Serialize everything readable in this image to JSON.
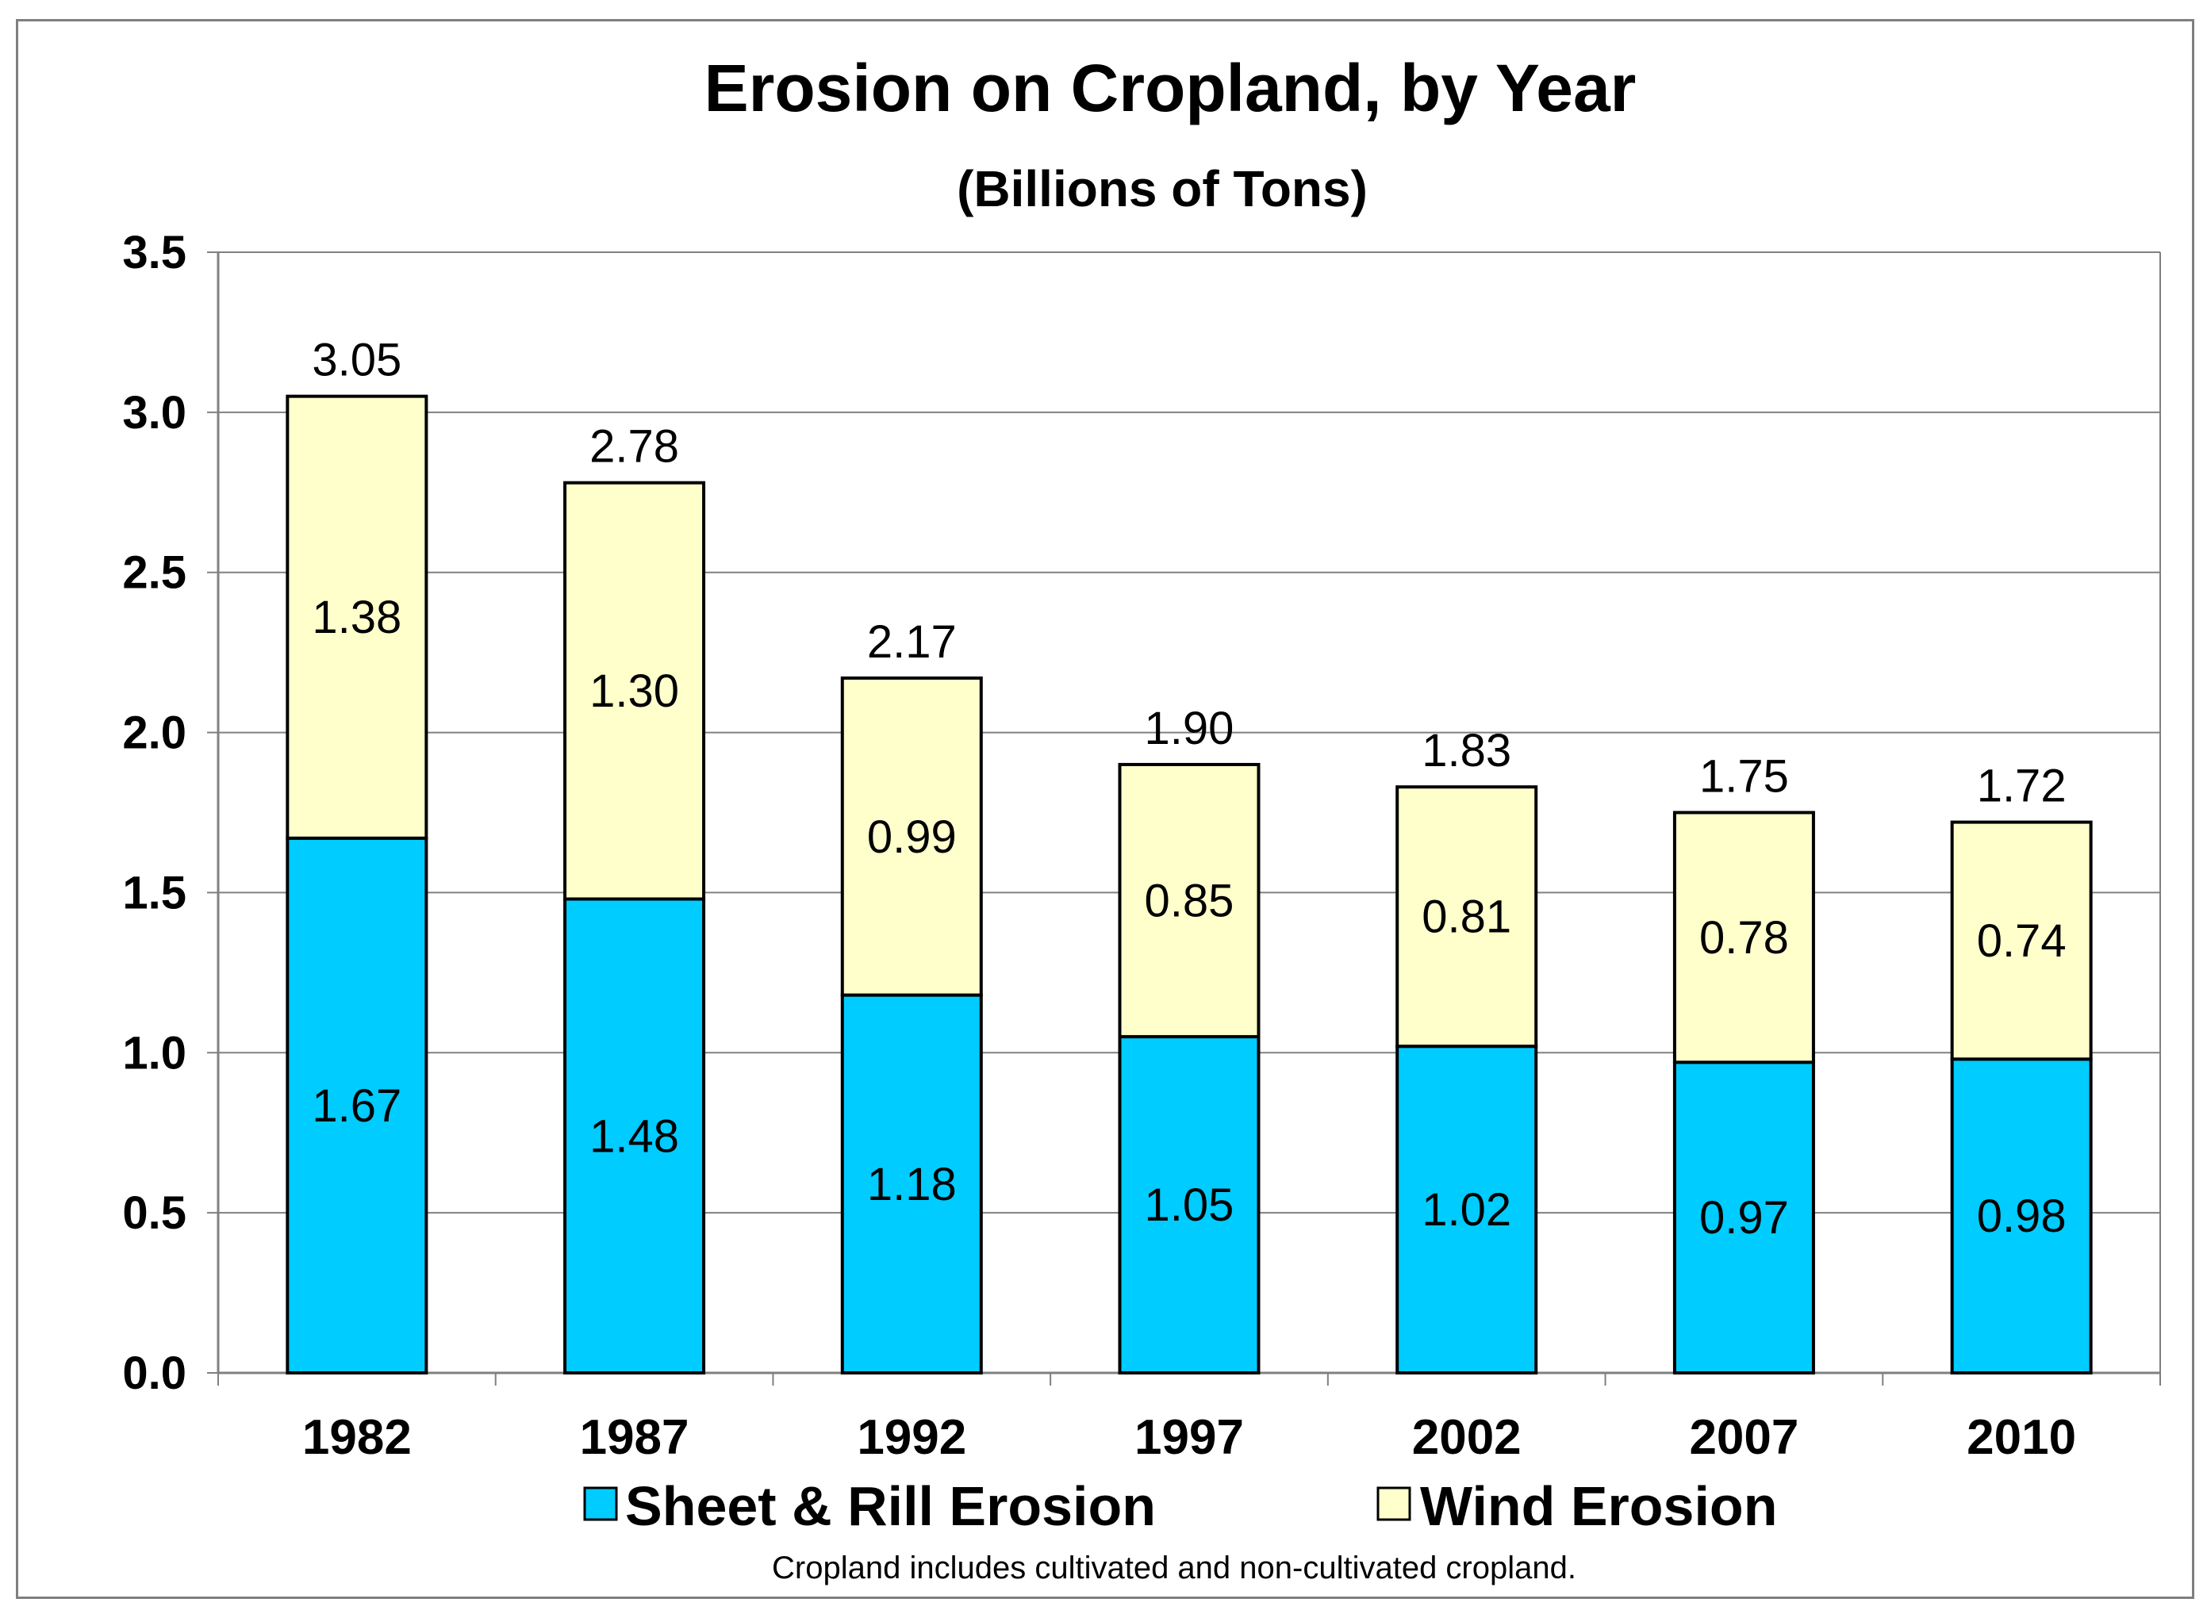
{
  "chart_data": {
    "type": "bar",
    "stacked": true,
    "title": "Erosion on Cropland, by Year",
    "subtitle": "(Billions of Tons)",
    "categories": [
      "1982",
      "1987",
      "1992",
      "1997",
      "2002",
      "2007",
      "2010"
    ],
    "series": [
      {
        "name": "Sheet & Rill Erosion",
        "color": "#00ccff",
        "values": [
          1.67,
          1.48,
          1.18,
          1.05,
          1.02,
          0.97,
          0.98
        ],
        "labels": [
          "1.67",
          "1.48",
          "1.18",
          "1.05",
          "1.02",
          "0.97",
          "0.98"
        ]
      },
      {
        "name": "Wind Erosion",
        "color": "#ffffcc",
        "values": [
          1.38,
          1.3,
          0.99,
          0.85,
          0.81,
          0.78,
          0.74
        ],
        "labels": [
          "1.38",
          "1.30",
          "0.99",
          "0.85",
          "0.81",
          "0.78",
          "0.74"
        ]
      }
    ],
    "totals": [
      3.05,
      2.78,
      2.17,
      1.9,
      1.83,
      1.75,
      1.72
    ],
    "total_labels": [
      "3.05",
      "2.78",
      "2.17",
      "1.90",
      "1.83",
      "1.75",
      "1.72"
    ],
    "ylim": [
      0,
      3.5
    ],
    "yticks": [
      0,
      0.5,
      1.0,
      1.5,
      2.0,
      2.5,
      3.0,
      3.5
    ],
    "ytick_labels": [
      "0.0",
      "0.5",
      "1.0",
      "1.5",
      "2.0",
      "2.5",
      "3.0",
      "3.5"
    ],
    "xlabel": "",
    "ylabel": "",
    "grid": true,
    "legend_position": "bottom",
    "note": "Cropland includes cultivated and non-cultivated cropland."
  },
  "colors": {
    "grid": "#808080",
    "bar_outline": "#000000",
    "frame": "#7f7f7f"
  }
}
